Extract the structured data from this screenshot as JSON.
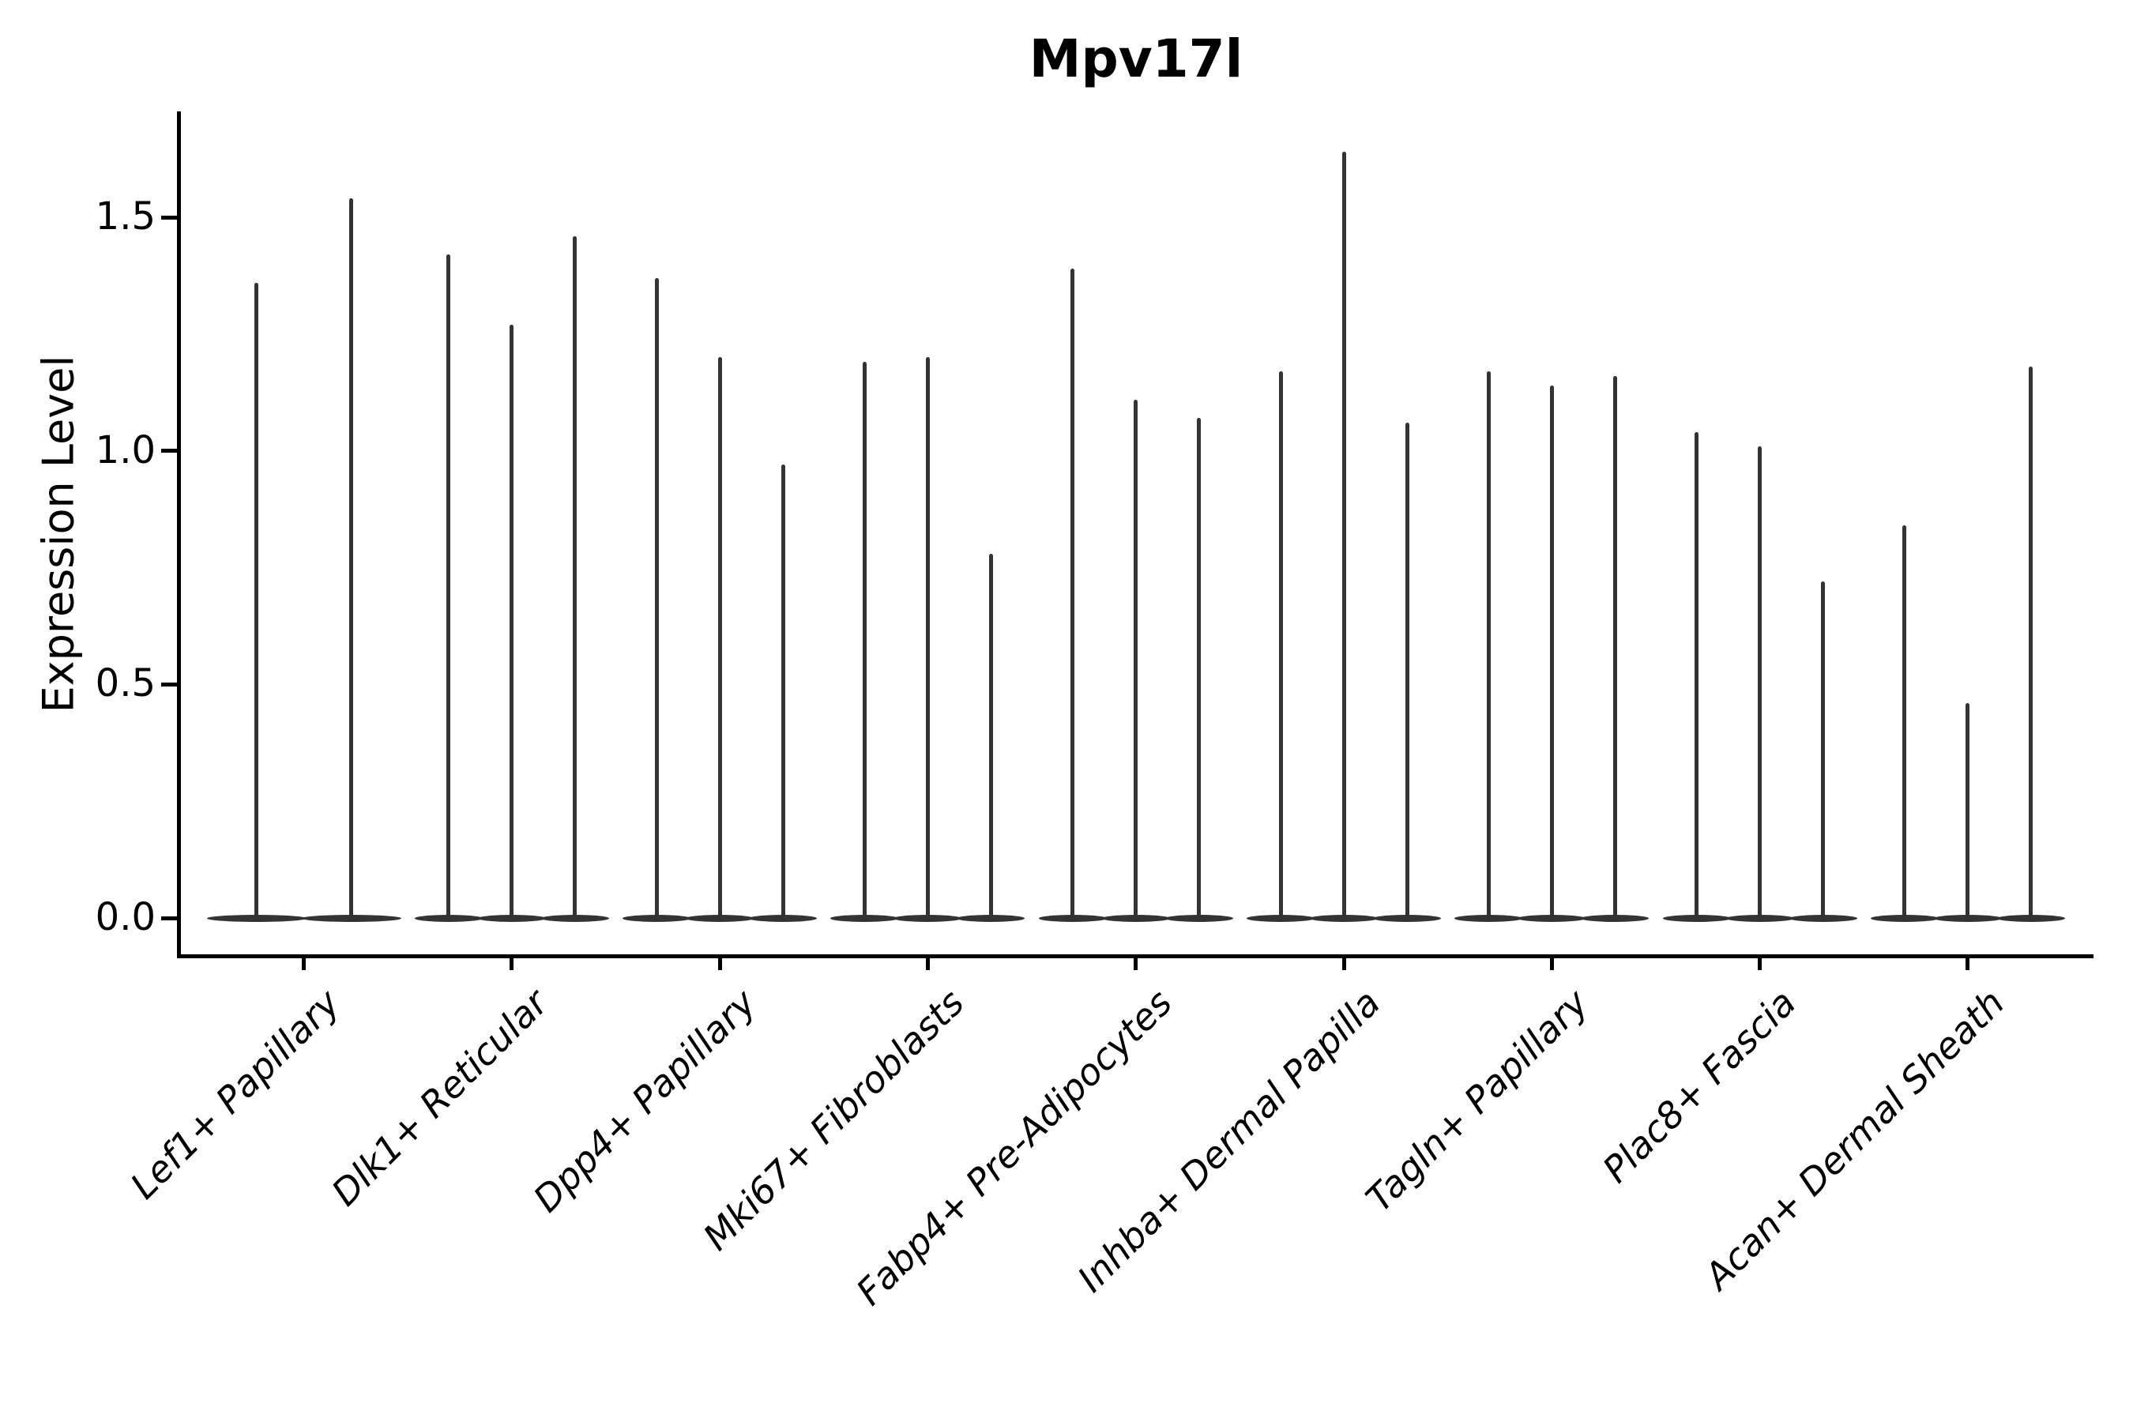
{
  "header": {
    "title": "Mpv17l"
  },
  "axes": {
    "ylabel": "Expression Level",
    "ytick_labels": [
      "0.0",
      "0.5",
      "1.0",
      "1.5"
    ]
  },
  "chart_data": {
    "type": "violin",
    "title": "Mpv17l",
    "xlabel": "",
    "ylabel": "Expression Level",
    "ylim": [
      -0.08,
      1.73
    ],
    "yticks": [
      0.0,
      0.5,
      1.0,
      1.5
    ],
    "ytick_labels": [
      "0.0",
      "0.5",
      "1.0",
      "1.5"
    ],
    "grid": false,
    "legend": "none",
    "categories": [
      "Lef1+ Papillary",
      "Dlk1+ Reticular",
      "Dpp4+ Papillary",
      "Mki67+ Fibroblasts",
      "Fabp4+ Pre-Adipocytes",
      "Inhba+ Dermal Papilla",
      "Tagln+ Papillary",
      "Plac8+ Fascia",
      "Acan+ Dermal Sheath"
    ],
    "series": [
      {
        "category": "Lef1+ Papillary",
        "violin_max_values": [
          1.36,
          1.54
        ]
      },
      {
        "category": "Dlk1+ Reticular",
        "violin_max_values": [
          1.42,
          1.27,
          1.46
        ]
      },
      {
        "category": "Dpp4+ Papillary",
        "violin_max_values": [
          1.37,
          1.2,
          0.97
        ]
      },
      {
        "category": "Mki67+ Fibroblasts",
        "violin_max_values": [
          1.19,
          1.2,
          0.78
        ]
      },
      {
        "category": "Fabp4+ Pre-Adipocytes",
        "violin_max_values": [
          1.39,
          1.11,
          1.07
        ]
      },
      {
        "category": "Inhba+ Dermal Papilla",
        "violin_max_values": [
          1.17,
          1.64,
          1.06
        ]
      },
      {
        "category": "Tagln+ Papillary",
        "violin_max_values": [
          1.17,
          1.14,
          1.16
        ]
      },
      {
        "category": "Plac8+ Fascia",
        "violin_max_values": [
          1.04,
          1.01,
          0.72
        ]
      },
      {
        "category": "Acan+ Dermal Sheath",
        "violin_max_values": [
          0.84,
          0.46,
          1.18
        ]
      }
    ],
    "violin_body_value": 0.0,
    "colors": {
      "violin": "#333333",
      "axis": "#000000",
      "text": "#000000"
    }
  }
}
